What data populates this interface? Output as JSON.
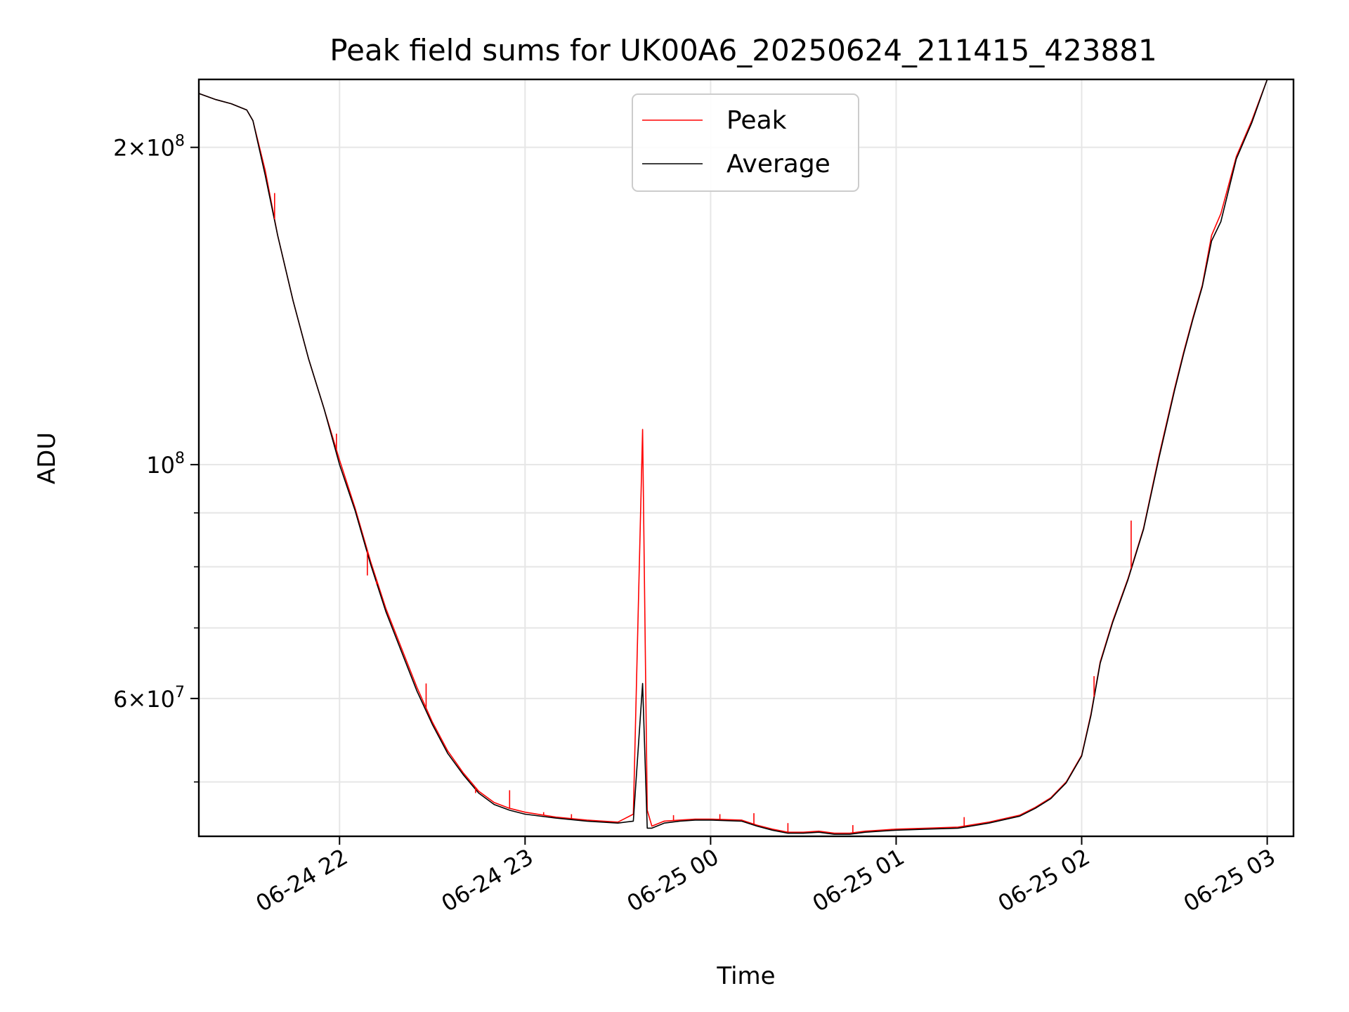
{
  "chart_data": {
    "type": "line",
    "title": "Peak field sums for UK00A6_20250624_211415_423881",
    "xlabel": "Time",
    "ylabel": "ADU",
    "yscale": "log",
    "ylim": [
      44400000,
      232000000
    ],
    "xlim": [
      "2025-06-24T21:14:30",
      "2025-06-25T03:08:30"
    ],
    "grid": true,
    "legend_position": "top-center",
    "x_ticks": [
      {
        "value": "2025-06-24T22:00:00",
        "label": "06-24 22"
      },
      {
        "value": "2025-06-24T23:00:00",
        "label": "06-24 23"
      },
      {
        "value": "2025-06-25T00:00:00",
        "label": "06-25 00"
      },
      {
        "value": "2025-06-25T01:00:00",
        "label": "06-25 01"
      },
      {
        "value": "2025-06-25T02:00:00",
        "label": "06-25 02"
      },
      {
        "value": "2025-06-25T03:00:00",
        "label": "06-25 03"
      }
    ],
    "y_major_ticks": [
      {
        "value": 60000000,
        "mantissa": "6",
        "exponent": "7"
      },
      {
        "value": 100000000,
        "mantissa": "",
        "exponent": "8"
      },
      {
        "value": 200000000,
        "mantissa": "2",
        "exponent": "8"
      }
    ],
    "y_minor_ticks": [
      50000000,
      70000000,
      80000000,
      90000000
    ],
    "series": [
      {
        "name": "Peak",
        "color": "#ff0000",
        "x": [
          "2025-06-24T21:14:30",
          "2025-06-24T21:20:00",
          "2025-06-24T21:25:00",
          "2025-06-24T21:30:00",
          "2025-06-24T21:32:00",
          "2025-06-24T21:36:00",
          "2025-06-24T21:40:00",
          "2025-06-24T21:45:00",
          "2025-06-24T21:50:00",
          "2025-06-24T21:55:00",
          "2025-06-24T22:00:00",
          "2025-06-24T22:05:00",
          "2025-06-24T22:10:00",
          "2025-06-24T22:15:00",
          "2025-06-24T22:20:00",
          "2025-06-24T22:25:00",
          "2025-06-24T22:30:00",
          "2025-06-24T22:35:00",
          "2025-06-24T22:40:00",
          "2025-06-24T22:45:00",
          "2025-06-24T22:50:00",
          "2025-06-24T22:55:00",
          "2025-06-24T23:00:00",
          "2025-06-24T23:10:00",
          "2025-06-24T23:20:00",
          "2025-06-24T23:30:00",
          "2025-06-24T23:35:00",
          "2025-06-24T23:38:00",
          "2025-06-24T23:39:30",
          "2025-06-24T23:41:00",
          "2025-06-24T23:45:00",
          "2025-06-24T23:50:00",
          "2025-06-24T23:55:00",
          "2025-06-25T00:00:00",
          "2025-06-25T00:10:00",
          "2025-06-25T00:15:00",
          "2025-06-25T00:20:00",
          "2025-06-25T00:25:00",
          "2025-06-25T00:30:00",
          "2025-06-25T00:35:00",
          "2025-06-25T00:40:00",
          "2025-06-25T00:45:00",
          "2025-06-25T00:50:00",
          "2025-06-25T00:55:00",
          "2025-06-25T01:00:00",
          "2025-06-25T01:10:00",
          "2025-06-25T01:20:00",
          "2025-06-25T01:30:00",
          "2025-06-25T01:40:00",
          "2025-06-25T01:45:00",
          "2025-06-25T01:50:00",
          "2025-06-25T01:55:00",
          "2025-06-25T02:00:00",
          "2025-06-25T02:03:00",
          "2025-06-25T02:06:00",
          "2025-06-25T02:10:00",
          "2025-06-25T02:15:00",
          "2025-06-25T02:20:00",
          "2025-06-25T02:25:00",
          "2025-06-25T02:30:00",
          "2025-06-25T02:33:00",
          "2025-06-25T02:36:00",
          "2025-06-25T02:39:00",
          "2025-06-25T02:42:00",
          "2025-06-25T02:45:00",
          "2025-06-25T02:50:00",
          "2025-06-25T02:55:00",
          "2025-06-25T03:00:00",
          "2025-06-25T03:08:30"
        ],
        "values": [
          225000000,
          222000000,
          220000000,
          217000000,
          212000000,
          190000000,
          165000000,
          143000000,
          126000000,
          113000000,
          101000000,
          91000000,
          81000000,
          73000000,
          67000000,
          61500000,
          57000000,
          53500000,
          51000000,
          49000000,
          47800000,
          47200000,
          46800000,
          46300000,
          46000000,
          45800000,
          46600000,
          108000000,
          47000000,
          45400000,
          45900000,
          46000000,
          46100000,
          46100000,
          46000000,
          45500000,
          45100000,
          44800000,
          44800000,
          44900000,
          44700000,
          44700000,
          44900000,
          45000000,
          45100000,
          45200000,
          45300000,
          45800000,
          46500000,
          47300000,
          48300000,
          50000000,
          53000000,
          58000000,
          65000000,
          71000000,
          78000000,
          87000000,
          102000000,
          118000000,
          128000000,
          138000000,
          148000000,
          165000000,
          173000000,
          196000000,
          212000000,
          232000000,
          232000000
        ]
      },
      {
        "name": "Average",
        "color": "#000000",
        "x": [
          "2025-06-24T21:14:30",
          "2025-06-24T21:20:00",
          "2025-06-24T21:25:00",
          "2025-06-24T21:30:00",
          "2025-06-24T21:32:00",
          "2025-06-24T21:36:00",
          "2025-06-24T21:40:00",
          "2025-06-24T21:45:00",
          "2025-06-24T21:50:00",
          "2025-06-24T21:55:00",
          "2025-06-24T22:00:00",
          "2025-06-24T22:05:00",
          "2025-06-24T22:10:00",
          "2025-06-24T22:15:00",
          "2025-06-24T22:20:00",
          "2025-06-24T22:25:00",
          "2025-06-24T22:30:00",
          "2025-06-24T22:35:00",
          "2025-06-24T22:40:00",
          "2025-06-24T22:45:00",
          "2025-06-24T22:50:00",
          "2025-06-24T22:55:00",
          "2025-06-24T23:00:00",
          "2025-06-24T23:10:00",
          "2025-06-24T23:20:00",
          "2025-06-24T23:30:00",
          "2025-06-24T23:35:00",
          "2025-06-24T23:38:00",
          "2025-06-24T23:39:30",
          "2025-06-24T23:41:00",
          "2025-06-24T23:45:00",
          "2025-06-24T23:50:00",
          "2025-06-24T23:55:00",
          "2025-06-25T00:00:00",
          "2025-06-25T00:10:00",
          "2025-06-25T00:15:00",
          "2025-06-25T00:20:00",
          "2025-06-25T00:25:00",
          "2025-06-25T00:30:00",
          "2025-06-25T00:35:00",
          "2025-06-25T00:40:00",
          "2025-06-25T00:45:00",
          "2025-06-25T00:50:00",
          "2025-06-25T00:55:00",
          "2025-06-25T01:00:00",
          "2025-06-25T01:10:00",
          "2025-06-25T01:20:00",
          "2025-06-25T01:30:00",
          "2025-06-25T01:40:00",
          "2025-06-25T01:45:00",
          "2025-06-25T01:50:00",
          "2025-06-25T01:55:00",
          "2025-06-25T02:00:00",
          "2025-06-25T02:03:00",
          "2025-06-25T02:06:00",
          "2025-06-25T02:10:00",
          "2025-06-25T02:15:00",
          "2025-06-25T02:20:00",
          "2025-06-25T02:25:00",
          "2025-06-25T02:30:00",
          "2025-06-25T02:33:00",
          "2025-06-25T02:36:00",
          "2025-06-25T02:39:00",
          "2025-06-25T02:42:00",
          "2025-06-25T02:45:00",
          "2025-06-25T02:50:00",
          "2025-06-25T02:55:00",
          "2025-06-25T03:00:00",
          "2025-06-25T03:08:30"
        ],
        "values": [
          225000000,
          222000000,
          220000000,
          217000000,
          212000000,
          188000000,
          165000000,
          143000000,
          126000000,
          113000000,
          100000000,
          90500000,
          80500000,
          72500000,
          66500000,
          61000000,
          56700000,
          53200000,
          50800000,
          48800000,
          47600000,
          47000000,
          46600000,
          46200000,
          45900000,
          45700000,
          45900000,
          62000000,
          45200000,
          45200000,
          45700000,
          45900000,
          46000000,
          46000000,
          45900000,
          45400000,
          45000000,
          44700000,
          44700000,
          44800000,
          44600000,
          44600000,
          44800000,
          44900000,
          45000000,
          45100000,
          45200000,
          45700000,
          46400000,
          47200000,
          48200000,
          49900000,
          52900000,
          57800000,
          64800000,
          70800000,
          77800000,
          86800000,
          101500000,
          117500000,
          127500000,
          137500000,
          147500000,
          163000000,
          170000000,
          195000000,
          211000000,
          232000000,
          232000000
        ]
      }
    ],
    "spikes": [
      {
        "series": "Peak",
        "x": "2025-06-24T21:39:00",
        "value": 181000000
      },
      {
        "series": "Peak",
        "x": "2025-06-24T21:59:00",
        "value": 107000000
      },
      {
        "series": "Peak",
        "x": "2025-06-24T22:09:00",
        "value": 78500000
      },
      {
        "series": "Peak",
        "x": "2025-06-24T22:12:00",
        "value": 77000000
      },
      {
        "series": "Peak",
        "x": "2025-06-24T22:28:00",
        "value": 62000000
      },
      {
        "series": "Peak",
        "x": "2025-06-24T22:44:00",
        "value": 48800000
      },
      {
        "series": "Peak",
        "x": "2025-06-24T22:55:00",
        "value": 49100000
      },
      {
        "series": "Peak",
        "x": "2025-06-24T23:06:00",
        "value": 46800000
      },
      {
        "series": "Peak",
        "x": "2025-06-24T23:15:00",
        "value": 46600000
      },
      {
        "series": "Peak",
        "x": "2025-06-24T23:48:00",
        "value": 46500000
      },
      {
        "series": "Peak",
        "x": "2025-06-25T00:03:00",
        "value": 46600000
      },
      {
        "series": "Peak",
        "x": "2025-06-25T00:14:00",
        "value": 46700000
      },
      {
        "series": "Peak",
        "x": "2025-06-25T00:25:00",
        "value": 45700000
      },
      {
        "series": "Peak",
        "x": "2025-06-25T00:46:00",
        "value": 45500000
      },
      {
        "series": "Peak",
        "x": "2025-06-25T01:22:00",
        "value": 46300000
      },
      {
        "series": "Peak",
        "x": "2025-06-25T02:04:00",
        "value": 63000000
      },
      {
        "series": "Peak",
        "x": "2025-06-25T02:16:00",
        "value": 88500000
      }
    ]
  }
}
